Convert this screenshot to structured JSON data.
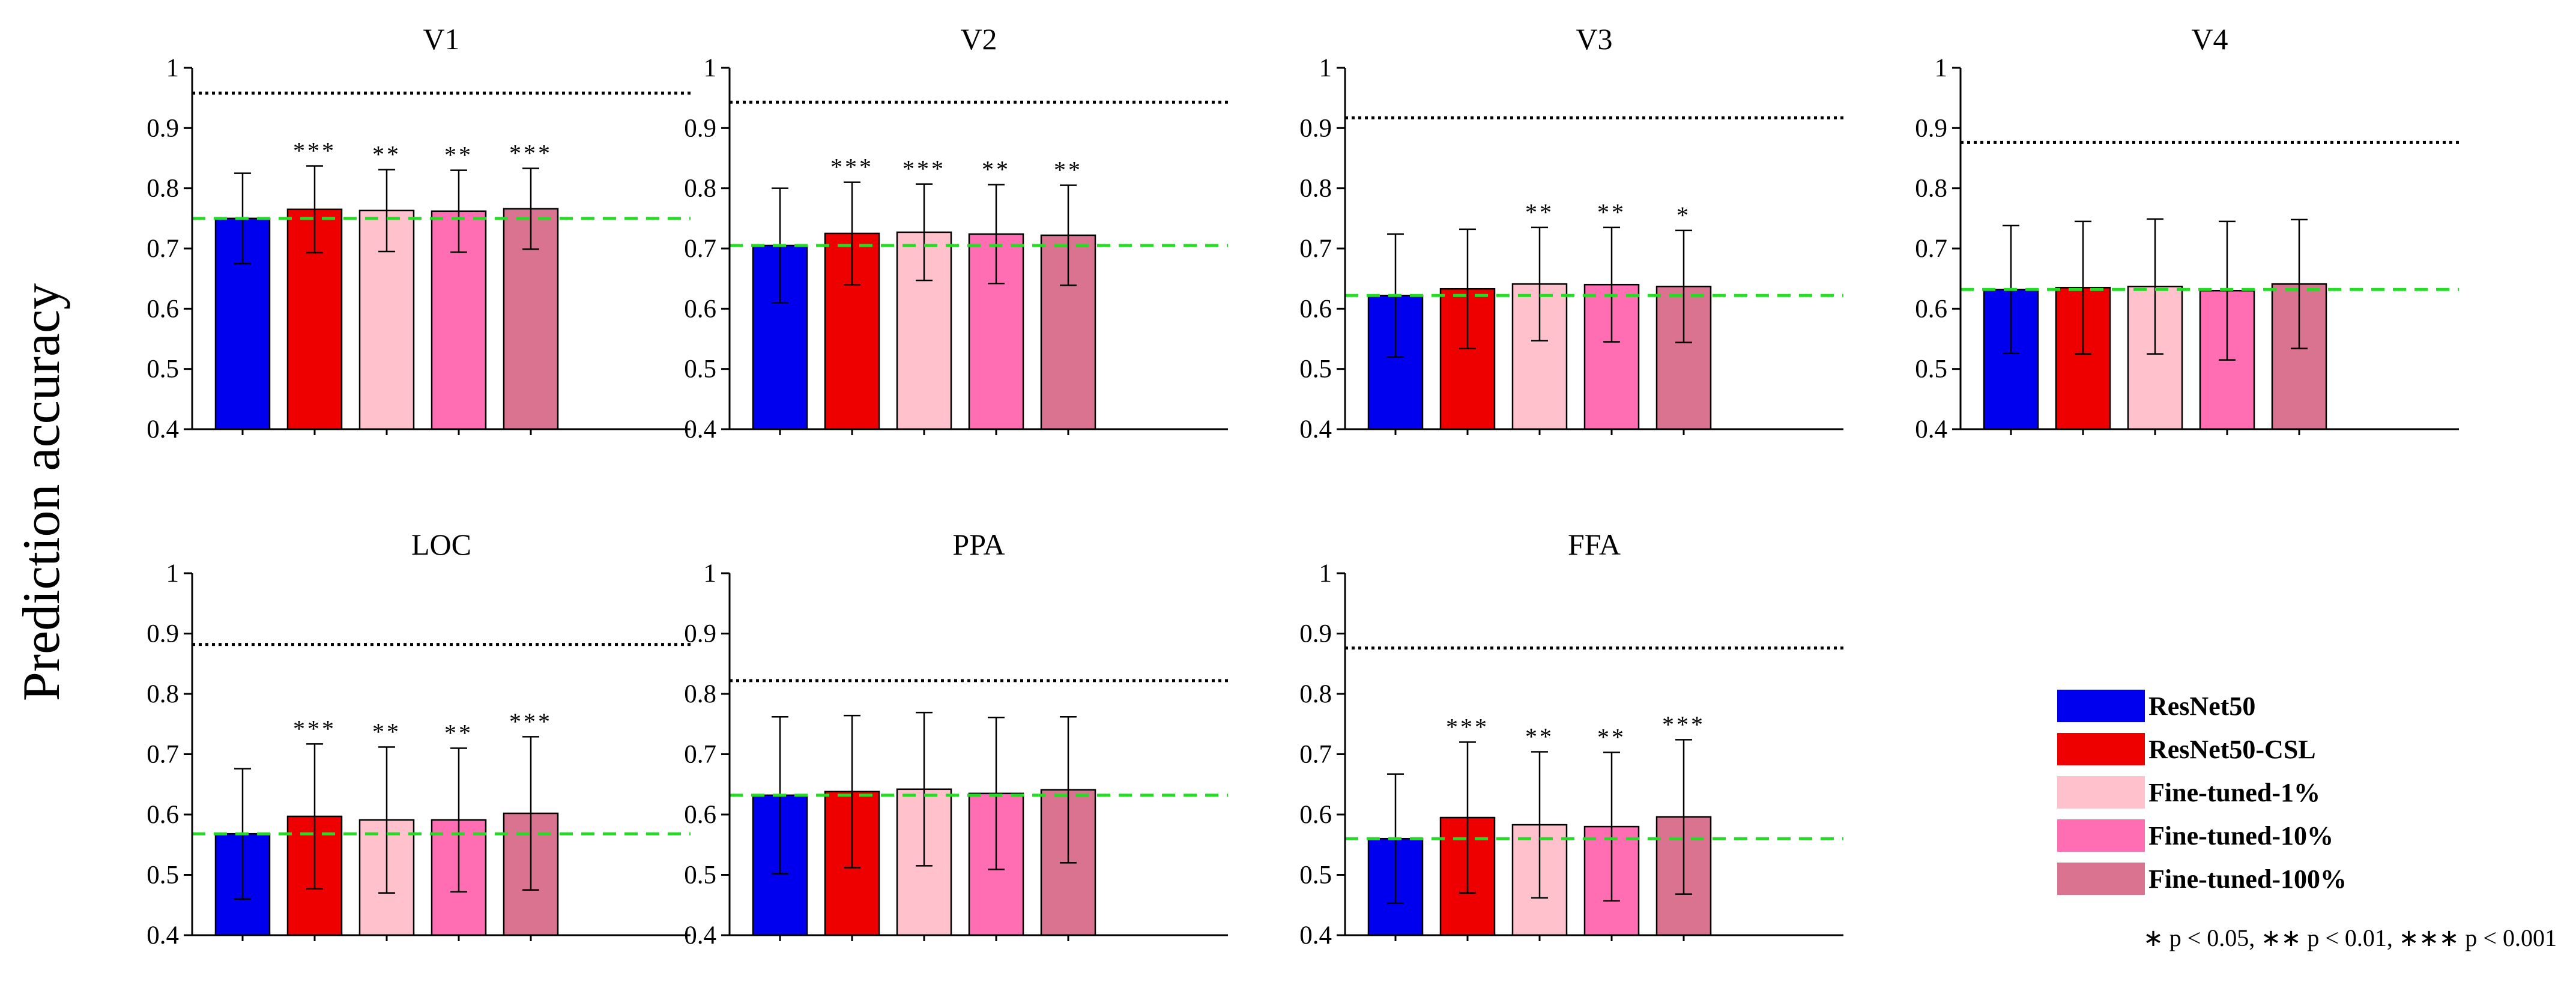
{
  "figure": {
    "ylabel": "Prediction accuracy",
    "significance_note": "∗ p < 0.05,  ∗∗ p < 0.01,  ∗∗∗ p < 0.001"
  },
  "chart_data": [
    {
      "type": "bar",
      "title": "V1",
      "ylim": [
        0.4,
        1.0
      ],
      "yticks": [
        "0.4",
        "0.5",
        "0.6",
        "0.7",
        "0.8",
        "0.9",
        "1"
      ],
      "values": [
        0.75,
        0.765,
        0.763,
        0.762,
        0.766
      ],
      "errors": [
        0.075,
        0.072,
        0.068,
        0.068,
        0.067
      ],
      "significance": [
        "",
        "***",
        "**",
        "**",
        "***"
      ],
      "ceiling": 0.958,
      "baseline": 0.75
    },
    {
      "type": "bar",
      "title": "V2",
      "ylim": [
        0.4,
        1.0
      ],
      "yticks": [
        "0.4",
        "0.5",
        "0.6",
        "0.7",
        "0.8",
        "0.9",
        "1"
      ],
      "values": [
        0.705,
        0.725,
        0.727,
        0.724,
        0.722
      ],
      "errors": [
        0.095,
        0.085,
        0.08,
        0.082,
        0.083
      ],
      "significance": [
        "",
        "***",
        "***",
        "**",
        "**"
      ],
      "ceiling": 0.943,
      "baseline": 0.705
    },
    {
      "type": "bar",
      "title": "V3",
      "ylim": [
        0.4,
        1.0
      ],
      "yticks": [
        "0.4",
        "0.5",
        "0.6",
        "0.7",
        "0.8",
        "0.9",
        "1"
      ],
      "values": [
        0.622,
        0.633,
        0.641,
        0.64,
        0.637
      ],
      "errors": [
        0.102,
        0.099,
        0.094,
        0.095,
        0.093
      ],
      "significance": [
        "",
        "",
        "**",
        "**",
        "*"
      ],
      "ceiling": 0.917,
      "baseline": 0.622
    },
    {
      "type": "bar",
      "title": "V4",
      "ylim": [
        0.4,
        1.0
      ],
      "yticks": [
        "0.4",
        "0.5",
        "0.6",
        "0.7",
        "0.8",
        "0.9",
        "1"
      ],
      "values": [
        0.632,
        0.635,
        0.637,
        0.63,
        0.641
      ],
      "errors": [
        0.106,
        0.11,
        0.112,
        0.115,
        0.107
      ],
      "significance": [
        "",
        "",
        "",
        "",
        ""
      ],
      "ceiling": 0.876,
      "baseline": 0.632
    },
    {
      "type": "bar",
      "title": "LOC",
      "ylim": [
        0.4,
        1.0
      ],
      "yticks": [
        "0.4",
        "0.5",
        "0.6",
        "0.7",
        "0.8",
        "0.9",
        "1"
      ],
      "values": [
        0.568,
        0.597,
        0.591,
        0.591,
        0.602
      ],
      "errors": [
        0.108,
        0.12,
        0.121,
        0.119,
        0.127
      ],
      "significance": [
        "",
        "***",
        "**",
        "**",
        "***"
      ],
      "ceiling": 0.882,
      "baseline": 0.568
    },
    {
      "type": "bar",
      "title": "PPA",
      "ylim": [
        0.4,
        1.0
      ],
      "yticks": [
        "0.4",
        "0.5",
        "0.6",
        "0.7",
        "0.8",
        "0.9",
        "1"
      ],
      "values": [
        0.632,
        0.638,
        0.642,
        0.635,
        0.641
      ],
      "errors": [
        0.13,
        0.126,
        0.127,
        0.126,
        0.121
      ],
      "significance": [
        "",
        "",
        "",
        "",
        ""
      ],
      "ceiling": 0.822,
      "baseline": 0.632
    },
    {
      "type": "bar",
      "title": "FFA",
      "ylim": [
        0.4,
        1.0
      ],
      "yticks": [
        "0.4",
        "0.5",
        "0.6",
        "0.7",
        "0.8",
        "0.9",
        "1"
      ],
      "values": [
        0.56,
        0.595,
        0.583,
        0.58,
        0.596
      ],
      "errors": [
        0.107,
        0.125,
        0.121,
        0.123,
        0.128
      ],
      "significance": [
        "",
        "***",
        "**",
        "**",
        "***"
      ],
      "ceiling": 0.876,
      "baseline": 0.56
    }
  ],
  "legend": [
    {
      "label": "ResNet50",
      "color": "#0000ee"
    },
    {
      "label": "ResNet50-CSL",
      "color": "#ee0000"
    },
    {
      "label": "Fine-tuned-1%",
      "color": "#ffc2cc"
    },
    {
      "label": "Fine-tuned-10%",
      "color": "#ff6eb2"
    },
    {
      "label": "Fine-tuned-100%",
      "color": "#d9738f"
    }
  ],
  "styles": {
    "ceiling_color": "#000000",
    "baseline_color": "#22dd22",
    "axis_color": "#000000"
  }
}
